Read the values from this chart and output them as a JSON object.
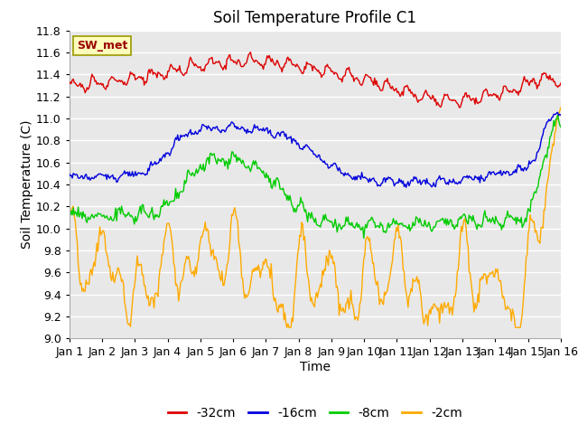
{
  "title": "Soil Temperature Profile C1",
  "xlabel": "Time",
  "ylabel": "Soil Temperature (C)",
  "ylim": [
    9.0,
    11.8
  ],
  "yticks": [
    9.0,
    9.2,
    9.4,
    9.6,
    9.8,
    10.0,
    10.2,
    10.4,
    10.6,
    10.8,
    11.0,
    11.2,
    11.4,
    11.6,
    11.8
  ],
  "xtick_labels": [
    "Jan 1",
    "Jan 2",
    "Jan 3",
    "Jan 4",
    "Jan 5",
    "Jan 6",
    "Jan 7",
    "Jan 8",
    "Jan 9",
    "Jan 10",
    "Jan 11",
    "Jan 12",
    "Jan 13",
    "Jan 14",
    "Jan 15",
    "Jan 16"
  ],
  "legend_labels": [
    "-32cm",
    "-16cm",
    "-8cm",
    "-2cm"
  ],
  "line_colors": [
    "#dd0000",
    "#0000dd",
    "#00cc00",
    "#ffaa00"
  ],
  "annotation_text": "SW_met",
  "annotation_bg": "#ffffbb",
  "annotation_border": "#999900",
  "fig_bg_color": "#ffffff",
  "plot_bg_color": "#e8e8e8",
  "grid_color": "#ffffff",
  "title_fontsize": 12,
  "axis_fontsize": 10,
  "tick_fontsize": 9,
  "legend_fontsize": 10
}
